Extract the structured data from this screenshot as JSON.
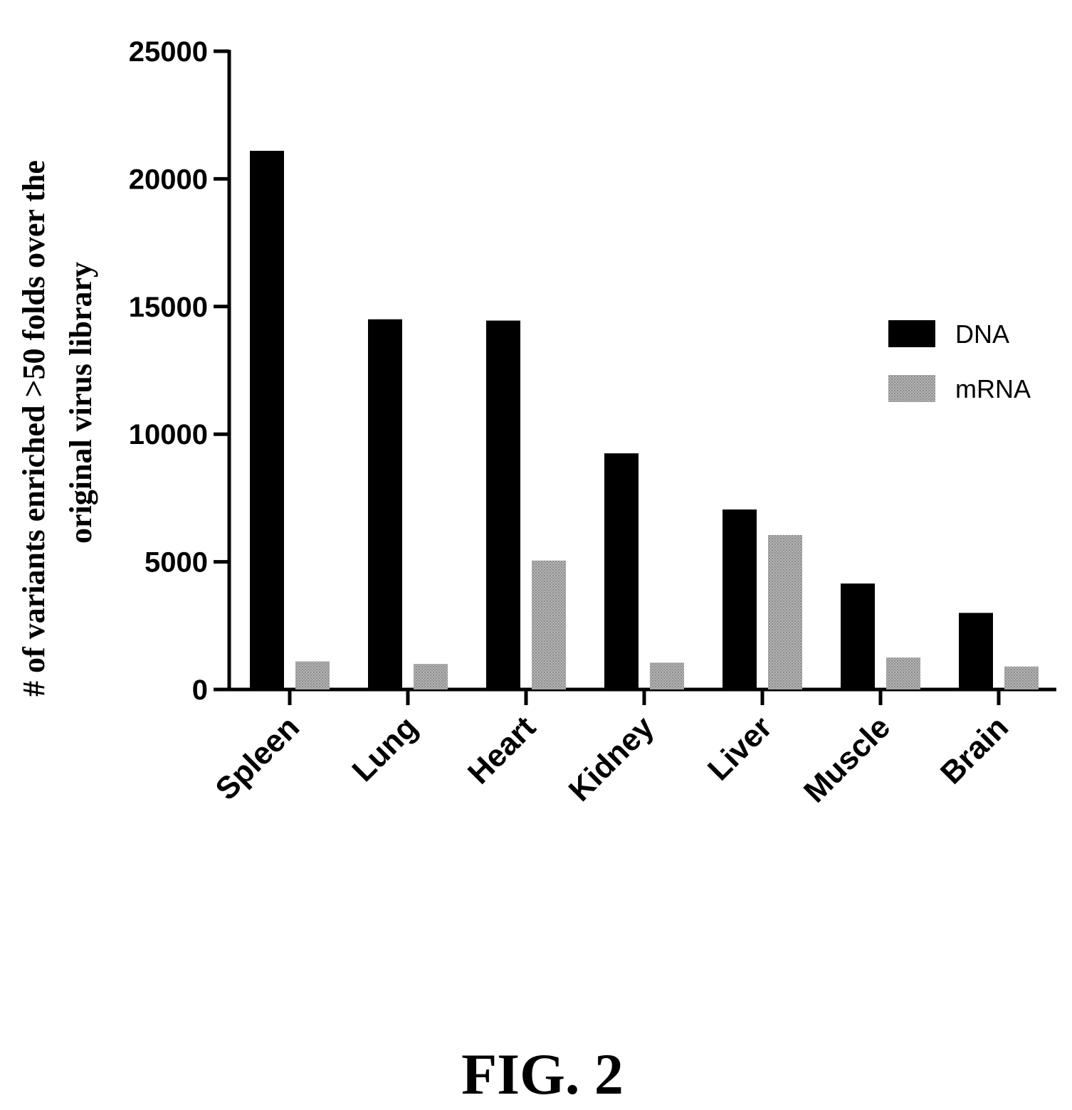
{
  "chart_data": {
    "type": "bar",
    "categories": [
      "Spleen",
      "Lung",
      "Heart",
      "Kidney",
      "Liver",
      "Muscle",
      "Brain"
    ],
    "series": [
      {
        "name": "DNA",
        "values": [
          21100,
          14500,
          14450,
          9250,
          7050,
          4150,
          3000
        ],
        "color": "#000000"
      },
      {
        "name": "mRNA",
        "values": [
          1100,
          1000,
          5050,
          1050,
          6050,
          1250,
          900
        ],
        "color": "#a8a8a8"
      }
    ],
    "ylabel_lines": [
      "# of variants enriched >50 folds over the",
      "original virus library"
    ],
    "xlabel": "",
    "ylim": [
      0,
      25000
    ],
    "yticks": [
      0,
      5000,
      10000,
      15000,
      20000,
      25000
    ],
    "grid": false,
    "legend_position": "right"
  },
  "caption": "FIG. 2"
}
